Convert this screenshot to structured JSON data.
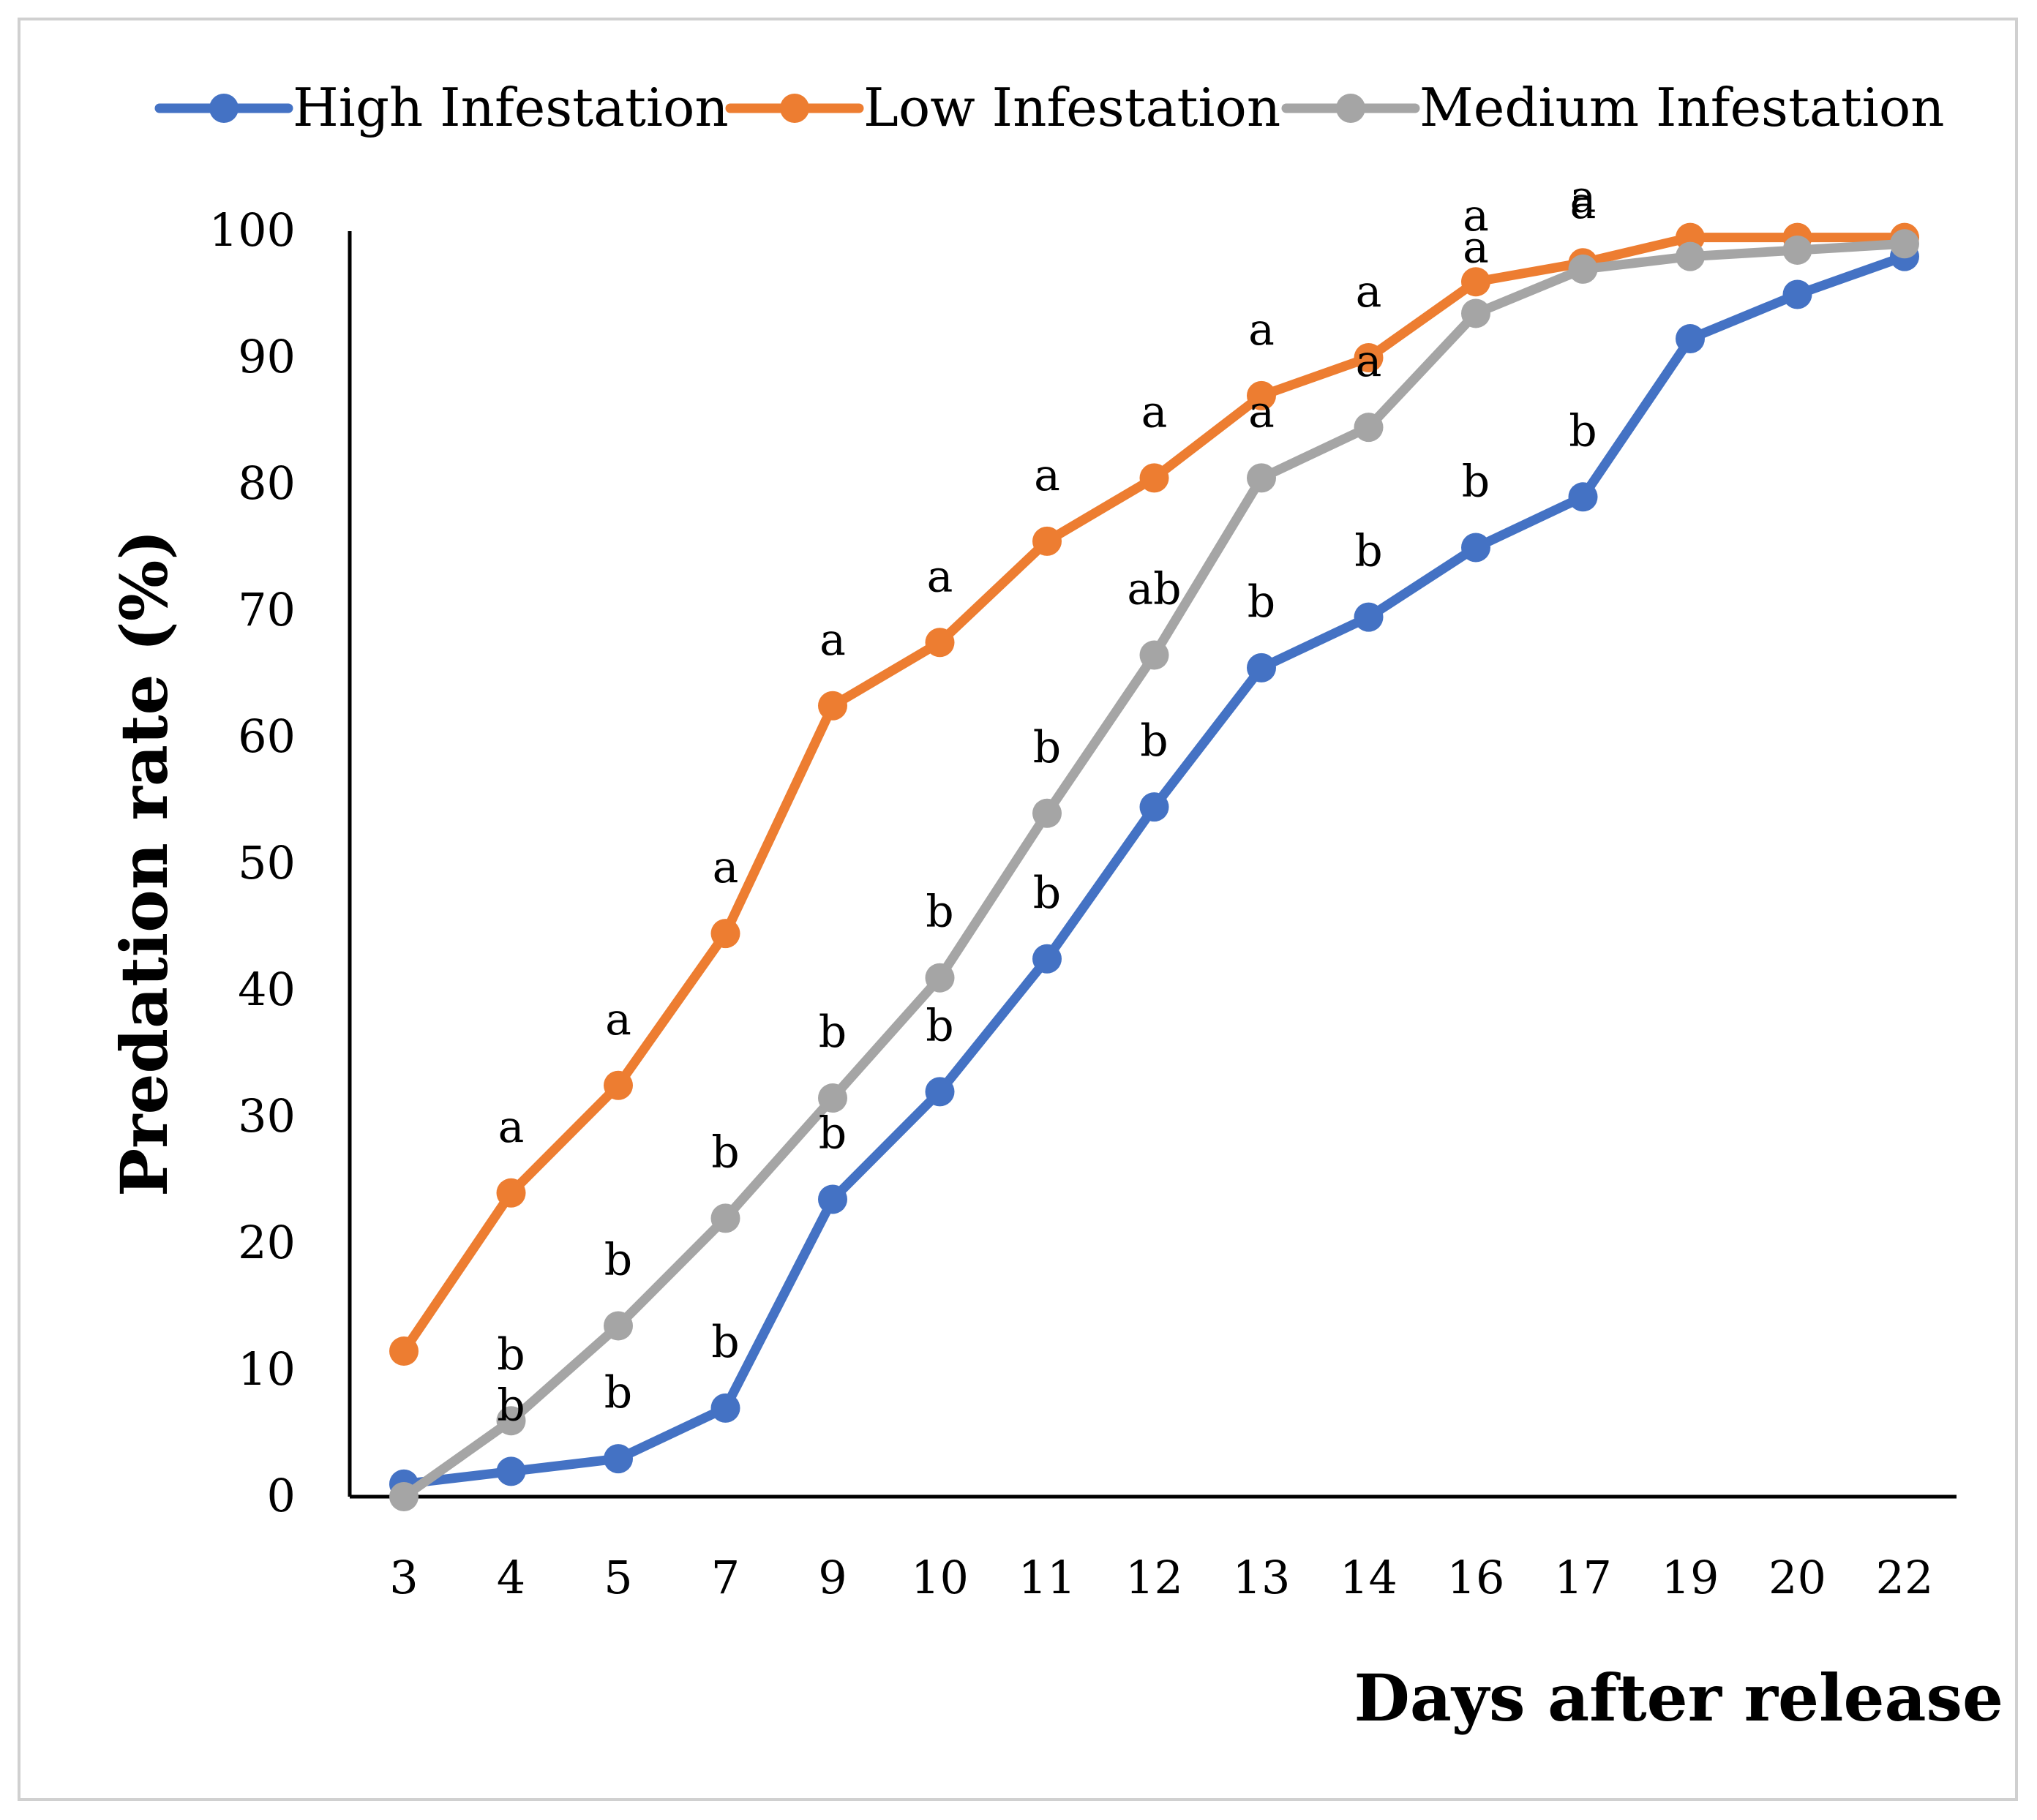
{
  "chart_data": {
    "type": "line",
    "title": "",
    "xlabel": "Days after release",
    "ylabel": "Predation rate (%)",
    "ylim": [
      0,
      100
    ],
    "yticks": [
      "0",
      "10",
      "20",
      "30",
      "40",
      "50",
      "60",
      "70",
      "80",
      "90",
      "100"
    ],
    "categories": [
      "3",
      "4",
      "5",
      "7",
      "9",
      "10",
      "11",
      "12",
      "13",
      "14",
      "16",
      "17",
      "19",
      "20",
      "22"
    ],
    "legend_position": "top",
    "series": [
      {
        "name": "High Infestation",
        "color": "#4472C4",
        "values": [
          1,
          2,
          3,
          7,
          23.5,
          32,
          42.5,
          54.5,
          65.5,
          69.5,
          75,
          79,
          91.5,
          95,
          98
        ],
        "sig_labels": [
          "",
          "b",
          "b",
          "b",
          "b",
          "b",
          "b",
          "b",
          "b",
          "b",
          "b",
          "b",
          "",
          "",
          ""
        ]
      },
      {
        "name": "Low Infestation",
        "color": "#ED7D31",
        "values": [
          11.5,
          24,
          32.5,
          44.5,
          62.5,
          67.5,
          75.5,
          80.5,
          87,
          90,
          96,
          97.5,
          99.5,
          99.5,
          99.5
        ],
        "sig_labels": [
          "",
          "a",
          "a",
          "a",
          "a",
          "a",
          "a",
          "a",
          "a",
          "a",
          "a",
          "a",
          "",
          "",
          ""
        ]
      },
      {
        "name": "Medium Infestation",
        "color": "#A5A5A5",
        "values": [
          0,
          6,
          13.5,
          22,
          31.5,
          41,
          54,
          66.5,
          80.5,
          84.5,
          93.5,
          97,
          98,
          98.5,
          99
        ],
        "sig_labels": [
          "",
          "b",
          "b",
          "b",
          "b",
          "b",
          "b",
          "ab",
          "a",
          "a",
          "a",
          "a",
          "",
          "",
          ""
        ]
      }
    ]
  }
}
